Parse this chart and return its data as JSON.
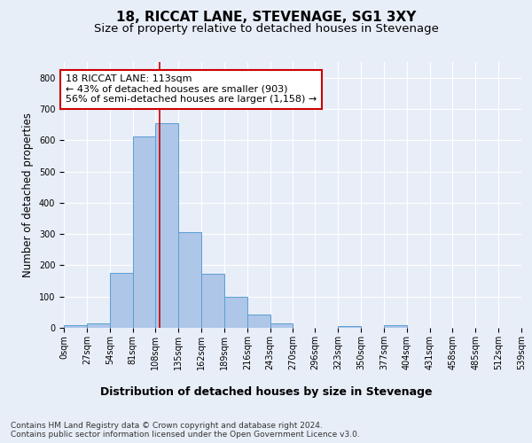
{
  "title1": "18, RICCAT LANE, STEVENAGE, SG1 3XY",
  "title2": "Size of property relative to detached houses in Stevenage",
  "xlabel": "Distribution of detached houses by size in Stevenage",
  "ylabel": "Number of detached properties",
  "bin_edges": [
    0,
    27,
    54,
    81,
    108,
    135,
    162,
    189,
    216,
    243,
    270,
    296,
    323,
    350,
    377,
    404,
    431,
    458,
    485,
    512,
    539
  ],
  "bar_heights": [
    8,
    15,
    175,
    612,
    655,
    305,
    172,
    100,
    42,
    15,
    0,
    0,
    5,
    0,
    8,
    0,
    0,
    0,
    0,
    0
  ],
  "bar_color": "#aec6e8",
  "bar_edge_color": "#5a9fd4",
  "vline_x": 113,
  "vline_color": "#cc0000",
  "annotation_text": "18 RICCAT LANE: 113sqm\n← 43% of detached houses are smaller (903)\n56% of semi-detached houses are larger (1,158) →",
  "annotation_box_color": "#ffffff",
  "annotation_box_edge_color": "#cc0000",
  "ylim": [
    0,
    850
  ],
  "yticks": [
    0,
    100,
    200,
    300,
    400,
    500,
    600,
    700,
    800
  ],
  "tick_labels": [
    "0sqm",
    "27sqm",
    "54sqm",
    "81sqm",
    "108sqm",
    "135sqm",
    "162sqm",
    "189sqm",
    "216sqm",
    "243sqm",
    "270sqm",
    "296sqm",
    "323sqm",
    "350sqm",
    "377sqm",
    "404sqm",
    "431sqm",
    "458sqm",
    "485sqm",
    "512sqm",
    "539sqm"
  ],
  "background_color": "#e8eef8",
  "grid_color": "#ffffff",
  "footnote": "Contains HM Land Registry data © Crown copyright and database right 2024.\nContains public sector information licensed under the Open Government Licence v3.0.",
  "title1_fontsize": 11,
  "title2_fontsize": 9.5,
  "xlabel_fontsize": 9,
  "ylabel_fontsize": 8.5,
  "tick_fontsize": 7,
  "annotation_fontsize": 8,
  "footnote_fontsize": 6.5
}
